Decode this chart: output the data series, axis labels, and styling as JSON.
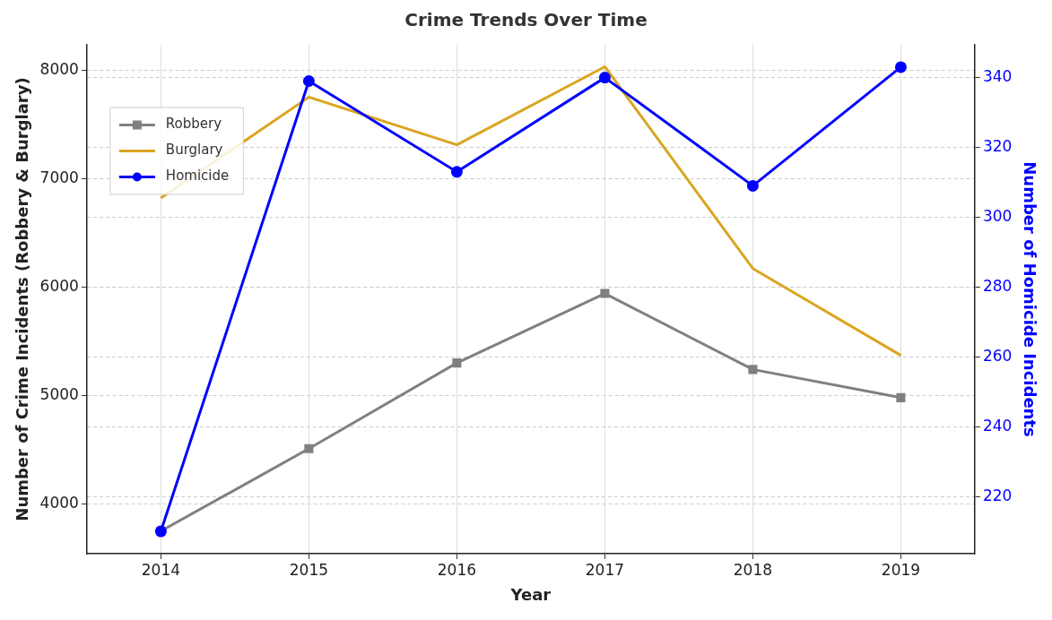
{
  "chart_data": {
    "type": "line",
    "title": "Crime Trends Over Time",
    "xlabel": "Year",
    "ylabel": "Number of Crime Incidents (Robbery & Burglary)",
    "y2label": "Number of Homicide Incidents",
    "categories": [
      "2014",
      "2015",
      "2016",
      "2017",
      "2018",
      "2019"
    ],
    "series": [
      {
        "name": "Robbery",
        "color": "#808080",
        "marker": "square",
        "values": [
          3750,
          4510,
          5300,
          5940,
          5240,
          4980
        ]
      },
      {
        "name": "Burglary",
        "color": "#daa520",
        "marker": "none",
        "values": [
          6820,
          7750,
          7310,
          8030,
          6170,
          5370
        ]
      },
      {
        "name": "Homicide",
        "color": "#0000ff",
        "marker": "circle",
        "axis": "y2",
        "values": [
          210,
          339,
          313,
          340,
          309,
          343
        ]
      }
    ],
    "ylim": [
      3542,
      8232
    ],
    "yticks": [
      4000,
      5000,
      6000,
      7000,
      8000
    ],
    "y2lim": [
      203.6,
      349.4
    ],
    "y2ticks": [
      220,
      240,
      260,
      280,
      300,
      320,
      340
    ],
    "grid": true,
    "legend": "top left",
    "line_style": "solid"
  }
}
